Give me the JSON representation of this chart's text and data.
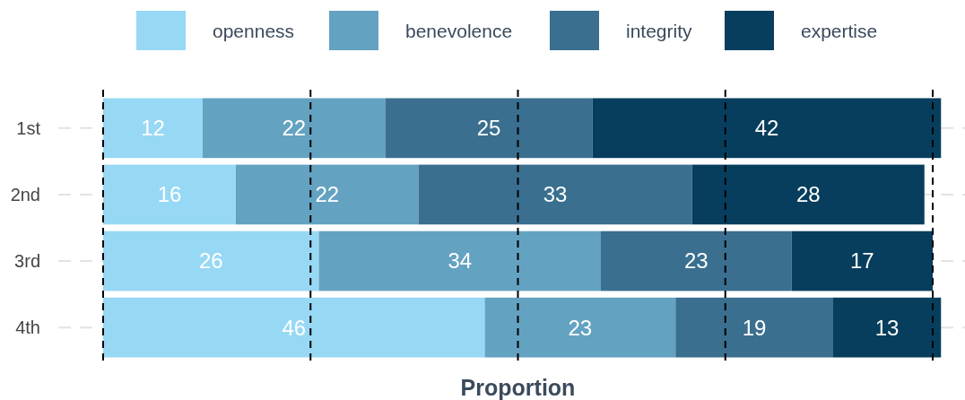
{
  "chart_data": {
    "type": "bar",
    "orientation": "horizontal",
    "stacked": true,
    "xlabel": "Proportion",
    "categories": [
      "1st",
      "2nd",
      "3rd",
      "4th"
    ],
    "series": [
      {
        "name": "openness",
        "color": "#97d8f5",
        "values": [
          12,
          16,
          26,
          46
        ]
      },
      {
        "name": "benevolence",
        "color": "#64a2c1",
        "values": [
          22,
          22,
          34,
          23
        ]
      },
      {
        "name": "integrity",
        "color": "#3a6f8f",
        "values": [
          25,
          33,
          23,
          19
        ]
      },
      {
        "name": "expertise",
        "color": "#073e5d",
        "values": [
          42,
          28,
          17,
          13
        ]
      }
    ],
    "xlim": [
      0,
      101
    ],
    "tick_labels": "y",
    "data_labels": true,
    "grid": "y",
    "legend": "top",
    "ref_lines": [
      {
        "axis": "x",
        "value": 0,
        "color": "#000000",
        "line_style": "dashed"
      },
      {
        "axis": "x",
        "value": 25,
        "color": "#000000",
        "line_style": "dashed"
      },
      {
        "axis": "x",
        "value": 50,
        "color": "#000000",
        "line_style": "dashed"
      },
      {
        "axis": "x",
        "value": 75,
        "color": "#000000",
        "line_style": "dashed"
      },
      {
        "axis": "x",
        "value": 100,
        "color": "#000000",
        "line_style": "dashed"
      }
    ]
  }
}
